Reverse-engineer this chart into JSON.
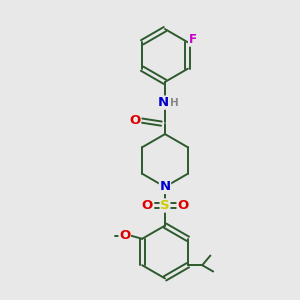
{
  "bg_color": "#e8e8e8",
  "fig_size": [
    3.0,
    3.0
  ],
  "dpi": 100,
  "bond_color": "#2d5a2d",
  "N_color": "#0000cc",
  "O_color": "#dd0000",
  "S_color": "#cccc00",
  "F_color": "#cc00cc",
  "H_color": "#888888",
  "line_width": 1.4,
  "font_size": 8.5,
  "xlim": [
    0,
    10
  ],
  "ylim": [
    0,
    10
  ]
}
